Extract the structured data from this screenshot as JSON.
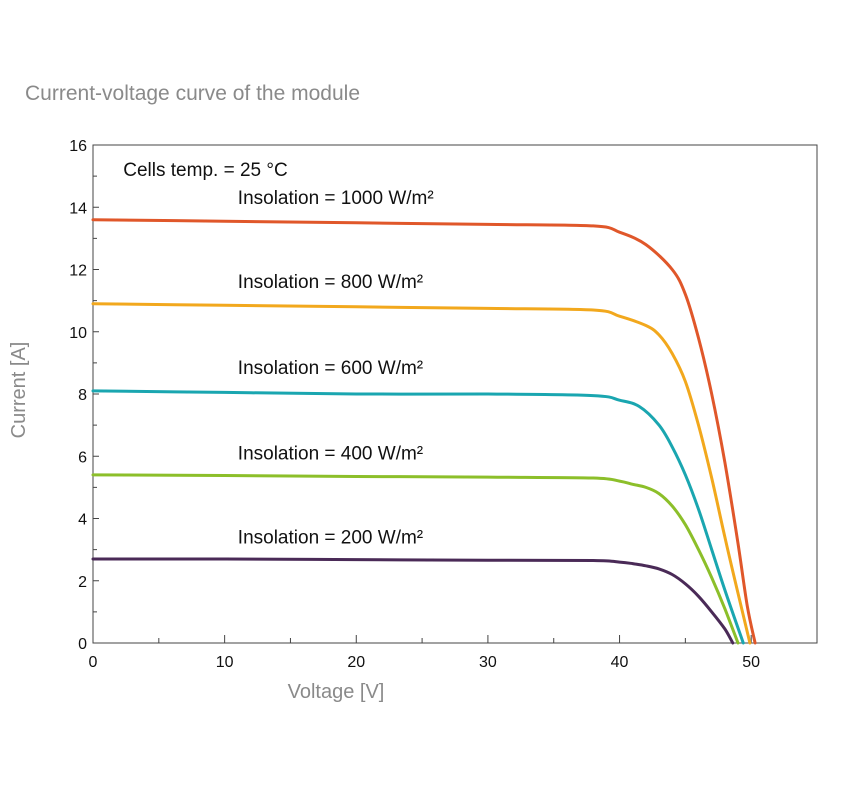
{
  "chart_data": {
    "type": "line",
    "title": "Current-voltage curve of the module",
    "xlabel": "Voltage [V]",
    "ylabel": "Current [A]",
    "xlim": [
      0,
      55
    ],
    "ylim": [
      0,
      16
    ],
    "x_ticks": [
      0,
      10,
      20,
      30,
      40,
      50
    ],
    "y_ticks": [
      0,
      2,
      4,
      6,
      8,
      10,
      12,
      14,
      16
    ],
    "grid": false,
    "annotation": "Cells temp. = 25 °C",
    "series": [
      {
        "name": "Insolation = 1000 W/m²",
        "color": "#e0572a",
        "x": [
          0,
          10,
          20,
          30,
          38,
          40,
          42,
          44,
          45,
          46,
          47,
          48,
          49,
          49.7,
          50.3
        ],
        "y": [
          13.6,
          13.55,
          13.5,
          13.45,
          13.4,
          13.2,
          12.8,
          12.0,
          11.2,
          9.8,
          8.0,
          5.8,
          3.2,
          1.2,
          0
        ]
      },
      {
        "name": "Insolation = 800 W/m²",
        "color": "#f2a81d",
        "x": [
          0,
          10,
          20,
          30,
          38,
          40,
          42,
          43,
          44,
          45,
          46,
          47,
          48,
          49,
          49.9
        ],
        "y": [
          10.9,
          10.85,
          10.8,
          10.75,
          10.7,
          10.5,
          10.2,
          9.9,
          9.3,
          8.4,
          7.0,
          5.3,
          3.4,
          1.6,
          0
        ]
      },
      {
        "name": "Insolation = 600 W/m²",
        "color": "#1aa6b0",
        "x": [
          0,
          10,
          20,
          30,
          38,
          40,
          41.5,
          43,
          44,
          45,
          46,
          47,
          48,
          49.4
        ],
        "y": [
          8.1,
          8.05,
          8.0,
          8.0,
          7.95,
          7.8,
          7.6,
          7.0,
          6.3,
          5.4,
          4.3,
          3.0,
          1.7,
          0
        ]
      },
      {
        "name": "Insolation = 400 W/m²",
        "color": "#8cbf2a",
        "x": [
          0,
          10,
          20,
          30,
          38,
          40,
          41,
          42,
          43,
          44,
          45,
          46,
          47,
          48,
          49.0
        ],
        "y": [
          5.4,
          5.38,
          5.35,
          5.33,
          5.3,
          5.2,
          5.1,
          5.0,
          4.8,
          4.4,
          3.8,
          3.0,
          2.1,
          1.1,
          0
        ]
      },
      {
        "name": "Insolation = 200 W/m²",
        "color": "#4a2a57",
        "x": [
          0,
          10,
          20,
          30,
          38,
          40,
          41,
          42,
          43,
          44,
          45,
          46,
          47,
          48,
          48.6
        ],
        "y": [
          2.7,
          2.7,
          2.68,
          2.66,
          2.65,
          2.6,
          2.55,
          2.48,
          2.38,
          2.2,
          1.9,
          1.5,
          1.0,
          0.45,
          0
        ]
      }
    ],
    "labels": [
      {
        "text": "Insolation = 1000 W/m²",
        "x": 11,
        "y": 14.1
      },
      {
        "text": "Insolation = 800 W/m²",
        "x": 11,
        "y": 11.4
      },
      {
        "text": "Insolation = 600 W/m²",
        "x": 11,
        "y": 8.65
      },
      {
        "text": "Insolation = 400 W/m²",
        "x": 11,
        "y": 5.9
      },
      {
        "text": "Insolation = 200 W/m²",
        "x": 11,
        "y": 3.2
      }
    ],
    "annotation_pos": {
      "x": 2.3,
      "y": 15.0
    }
  }
}
